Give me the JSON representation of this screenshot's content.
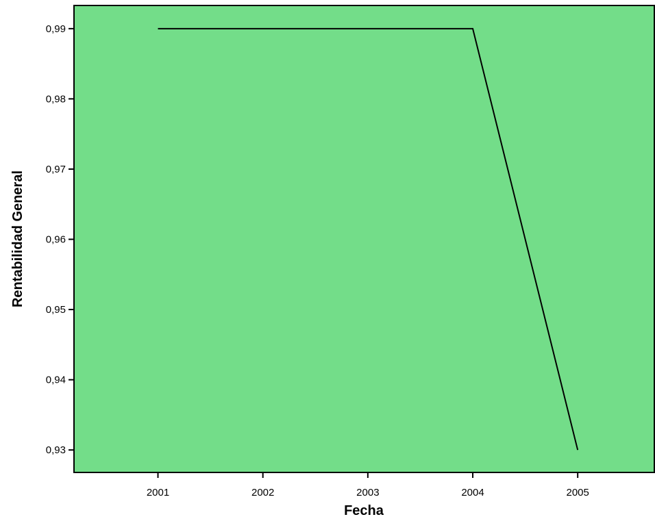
{
  "chart_data": {
    "type": "line",
    "title": "",
    "xlabel": "Fecha",
    "ylabel": "Rentabilidad General",
    "x": [
      "2001",
      "2002",
      "2003",
      "2004",
      "2005"
    ],
    "x_values": [
      2001,
      2002,
      2003,
      2004,
      2005
    ],
    "xlim": [
      2000.2,
      2005.73
    ],
    "y_ticks": [
      "0,93",
      "0,94",
      "0,95",
      "0,96",
      "0,97",
      "0,98",
      "0,99"
    ],
    "y_tick_values": [
      0.93,
      0.94,
      0.95,
      0.96,
      0.97,
      0.98,
      0.99
    ],
    "ylim": [
      0.9268,
      0.9933
    ],
    "series": [
      {
        "values": [
          0.99,
          0.99,
          0.99,
          0.99,
          0.93
        ]
      }
    ],
    "grid": false,
    "legend": "none",
    "colors": {
      "plot_background": "#73dd89",
      "line": "#000000",
      "axis": "#000000"
    }
  }
}
